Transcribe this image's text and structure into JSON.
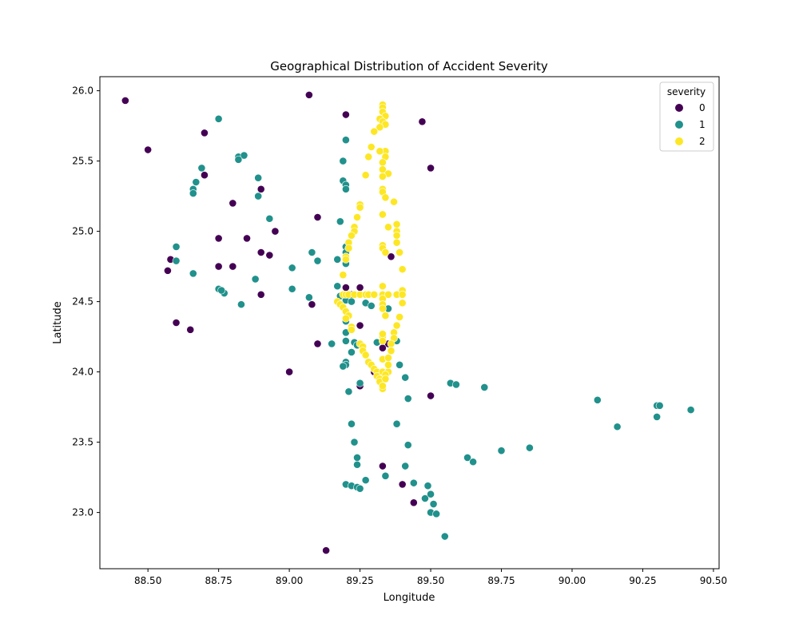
{
  "chart_data": {
    "type": "scatter",
    "title": "Geographical Distribution of Accident Severity",
    "xlabel": "Longitude",
    "ylabel": "Latitude",
    "xlim": [
      88.33,
      90.52
    ],
    "ylim": [
      22.6,
      26.1
    ],
    "xticks": [
      88.5,
      88.75,
      89.0,
      89.25,
      89.5,
      89.75,
      90.0,
      90.25,
      90.5
    ],
    "xtick_labels": [
      "88.50",
      "88.75",
      "89.00",
      "89.25",
      "89.50",
      "89.75",
      "90.00",
      "90.25",
      "90.50"
    ],
    "yticks": [
      23.0,
      23.5,
      24.0,
      24.5,
      25.0,
      25.5,
      26.0
    ],
    "ytick_labels": [
      "23.0",
      "23.5",
      "24.0",
      "24.5",
      "25.0",
      "25.5",
      "26.0"
    ],
    "grid": false,
    "legend": {
      "title": "severity",
      "placement": "top-right"
    },
    "series": [
      {
        "name": "0",
        "color": "#440154",
        "points": [
          [
            88.42,
            25.93
          ],
          [
            88.5,
            25.58
          ],
          [
            88.7,
            25.7
          ],
          [
            88.7,
            25.4
          ],
          [
            88.8,
            25.2
          ],
          [
            88.9,
            25.3
          ],
          [
            88.75,
            24.95
          ],
          [
            88.85,
            24.95
          ],
          [
            88.93,
            25.09
          ],
          [
            88.95,
            25.0
          ],
          [
            89.1,
            25.1
          ],
          [
            89.07,
            25.97
          ],
          [
            89.2,
            25.83
          ],
          [
            89.47,
            25.78
          ],
          [
            89.5,
            25.45
          ],
          [
            88.58,
            24.8
          ],
          [
            88.57,
            24.72
          ],
          [
            88.75,
            24.75
          ],
          [
            88.8,
            24.75
          ],
          [
            88.9,
            24.85
          ],
          [
            88.93,
            24.83
          ],
          [
            88.6,
            24.35
          ],
          [
            88.65,
            24.3
          ],
          [
            88.9,
            24.55
          ],
          [
            89.08,
            24.48
          ],
          [
            89.1,
            24.2
          ],
          [
            89.0,
            24.0
          ],
          [
            89.13,
            22.73
          ],
          [
            89.2,
            24.6
          ],
          [
            89.22,
            24.55
          ],
          [
            89.25,
            24.6
          ],
          [
            89.25,
            24.33
          ],
          [
            89.35,
            24.2
          ],
          [
            89.33,
            24.17
          ],
          [
            89.36,
            24.82
          ],
          [
            89.3,
            24.0
          ],
          [
            89.25,
            23.9
          ],
          [
            89.5,
            23.83
          ],
          [
            89.33,
            23.33
          ],
          [
            89.4,
            23.2
          ],
          [
            89.44,
            23.07
          ],
          [
            89.25,
            23.17
          ]
        ]
      },
      {
        "name": "1",
        "color": "#21918c",
        "points": [
          [
            88.75,
            25.8
          ],
          [
            88.82,
            25.53
          ],
          [
            88.84,
            25.54
          ],
          [
            88.82,
            25.51
          ],
          [
            88.69,
            25.45
          ],
          [
            88.67,
            25.35
          ],
          [
            88.66,
            25.3
          ],
          [
            88.66,
            25.27
          ],
          [
            88.89,
            25.38
          ],
          [
            88.89,
            25.25
          ],
          [
            88.93,
            25.09
          ],
          [
            88.6,
            24.89
          ],
          [
            88.6,
            24.79
          ],
          [
            88.66,
            24.7
          ],
          [
            88.75,
            24.59
          ],
          [
            88.77,
            24.56
          ],
          [
            88.76,
            24.58
          ],
          [
            88.83,
            24.48
          ],
          [
            88.88,
            24.66
          ],
          [
            89.01,
            24.74
          ],
          [
            89.01,
            24.59
          ],
          [
            89.08,
            24.85
          ],
          [
            89.1,
            24.79
          ],
          [
            89.07,
            24.53
          ],
          [
            89.19,
            25.36
          ],
          [
            89.2,
            25.33
          ],
          [
            89.2,
            25.3
          ],
          [
            89.2,
            25.65
          ],
          [
            89.19,
            25.5
          ],
          [
            89.18,
            25.07
          ],
          [
            89.2,
            24.89
          ],
          [
            89.2,
            24.85
          ],
          [
            89.2,
            24.77
          ],
          [
            89.17,
            24.8
          ],
          [
            89.17,
            24.61
          ],
          [
            89.18,
            24.54
          ],
          [
            89.2,
            24.51
          ],
          [
            89.22,
            24.5
          ],
          [
            89.27,
            24.49
          ],
          [
            89.29,
            24.47
          ],
          [
            89.35,
            24.45
          ],
          [
            89.2,
            24.36
          ],
          [
            89.22,
            24.3
          ],
          [
            89.2,
            24.28
          ],
          [
            89.2,
            24.22
          ],
          [
            89.23,
            24.21
          ],
          [
            89.24,
            24.19
          ],
          [
            89.22,
            24.14
          ],
          [
            89.2,
            24.07
          ],
          [
            89.2,
            24.05
          ],
          [
            89.19,
            24.04
          ],
          [
            89.15,
            24.2
          ],
          [
            89.31,
            24.21
          ],
          [
            89.38,
            24.22
          ],
          [
            89.39,
            24.05
          ],
          [
            89.41,
            23.96
          ],
          [
            89.21,
            23.86
          ],
          [
            89.25,
            23.92
          ],
          [
            89.42,
            23.81
          ],
          [
            89.57,
            23.92
          ],
          [
            89.59,
            23.91
          ],
          [
            89.69,
            23.89
          ],
          [
            89.22,
            23.63
          ],
          [
            89.23,
            23.5
          ],
          [
            89.24,
            23.39
          ],
          [
            89.24,
            23.34
          ],
          [
            89.38,
            23.63
          ],
          [
            89.42,
            23.48
          ],
          [
            89.41,
            23.33
          ],
          [
            89.34,
            23.26
          ],
          [
            89.2,
            23.2
          ],
          [
            89.22,
            23.19
          ],
          [
            89.24,
            23.18
          ],
          [
            89.25,
            23.17
          ],
          [
            89.27,
            23.23
          ],
          [
            89.44,
            23.21
          ],
          [
            89.48,
            23.1
          ],
          [
            89.49,
            23.19
          ],
          [
            89.5,
            23.13
          ],
          [
            89.51,
            23.06
          ],
          [
            89.5,
            23.0
          ],
          [
            89.52,
            22.99
          ],
          [
            89.55,
            22.83
          ],
          [
            89.63,
            23.39
          ],
          [
            89.65,
            23.36
          ],
          [
            89.75,
            23.44
          ],
          [
            89.85,
            23.46
          ],
          [
            90.09,
            23.8
          ],
          [
            90.16,
            23.61
          ],
          [
            90.3,
            23.76
          ],
          [
            90.31,
            23.76
          ],
          [
            90.3,
            23.68
          ],
          [
            90.42,
            23.73
          ]
        ]
      },
      {
        "name": "2",
        "color": "#fde725",
        "points": [
          [
            89.33,
            25.9
          ],
          [
            89.33,
            25.88
          ],
          [
            89.33,
            25.85
          ],
          [
            89.34,
            25.82
          ],
          [
            89.32,
            25.8
          ],
          [
            89.33,
            25.78
          ],
          [
            89.34,
            25.76
          ],
          [
            89.32,
            25.74
          ],
          [
            89.3,
            25.71
          ],
          [
            89.29,
            25.6
          ],
          [
            89.28,
            25.53
          ],
          [
            89.34,
            25.57
          ],
          [
            89.32,
            25.57
          ],
          [
            89.34,
            25.53
          ],
          [
            89.33,
            25.49
          ],
          [
            89.33,
            25.44
          ],
          [
            89.35,
            25.41
          ],
          [
            89.27,
            25.4
          ],
          [
            89.33,
            25.39
          ],
          [
            89.33,
            25.3
          ],
          [
            89.33,
            25.28
          ],
          [
            89.34,
            25.24
          ],
          [
            89.25,
            25.19
          ],
          [
            89.25,
            25.17
          ],
          [
            89.24,
            25.1
          ],
          [
            89.23,
            25.03
          ],
          [
            89.23,
            25.0
          ],
          [
            89.22,
            24.97
          ],
          [
            89.21,
            24.92
          ],
          [
            89.21,
            24.88
          ],
          [
            89.2,
            24.82
          ],
          [
            89.2,
            24.8
          ],
          [
            89.19,
            24.69
          ],
          [
            89.33,
            25.12
          ],
          [
            89.35,
            25.03
          ],
          [
            89.37,
            25.21
          ],
          [
            89.38,
            25.05
          ],
          [
            89.38,
            25.0
          ],
          [
            89.38,
            24.97
          ],
          [
            89.38,
            24.92
          ],
          [
            89.39,
            24.85
          ],
          [
            89.33,
            24.9
          ],
          [
            89.33,
            24.88
          ],
          [
            89.34,
            24.85
          ],
          [
            89.4,
            24.73
          ],
          [
            89.19,
            24.55
          ],
          [
            89.2,
            24.55
          ],
          [
            89.21,
            24.55
          ],
          [
            89.23,
            24.55
          ],
          [
            89.25,
            24.55
          ],
          [
            89.27,
            24.55
          ],
          [
            89.28,
            24.55
          ],
          [
            89.3,
            24.55
          ],
          [
            89.33,
            24.55
          ],
          [
            89.35,
            24.55
          ],
          [
            89.38,
            24.55
          ],
          [
            89.4,
            24.58
          ],
          [
            89.4,
            24.55
          ],
          [
            89.4,
            24.49
          ],
          [
            89.33,
            24.61
          ],
          [
            89.33,
            24.52
          ],
          [
            89.33,
            24.48
          ],
          [
            89.33,
            24.45
          ],
          [
            89.17,
            24.5
          ],
          [
            89.18,
            24.48
          ],
          [
            89.19,
            24.46
          ],
          [
            89.2,
            24.43
          ],
          [
            89.21,
            24.4
          ],
          [
            89.2,
            24.38
          ],
          [
            89.22,
            24.32
          ],
          [
            89.22,
            24.3
          ],
          [
            89.25,
            24.2
          ],
          [
            89.26,
            24.18
          ],
          [
            89.26,
            24.15
          ],
          [
            89.27,
            24.12
          ],
          [
            89.28,
            24.07
          ],
          [
            89.29,
            24.05
          ],
          [
            89.3,
            24.02
          ],
          [
            89.31,
            24.0
          ],
          [
            89.31,
            23.97
          ],
          [
            89.32,
            23.95
          ],
          [
            89.32,
            23.93
          ],
          [
            89.33,
            23.9
          ],
          [
            89.33,
            23.88
          ],
          [
            89.33,
            24.0
          ],
          [
            89.35,
            24.0
          ],
          [
            89.33,
            24.09
          ],
          [
            89.33,
            24.25
          ],
          [
            89.33,
            24.22
          ],
          [
            89.33,
            24.27
          ],
          [
            89.34,
            24.4
          ],
          [
            89.39,
            24.39
          ],
          [
            89.38,
            24.33
          ],
          [
            89.37,
            24.28
          ],
          [
            89.37,
            24.24
          ],
          [
            89.36,
            24.2
          ],
          [
            89.36,
            24.15
          ],
          [
            89.35,
            24.1
          ],
          [
            89.35,
            24.05
          ],
          [
            89.34,
            23.98
          ],
          [
            89.34,
            23.95
          ],
          [
            89.33,
            23.9
          ]
        ]
      }
    ]
  }
}
